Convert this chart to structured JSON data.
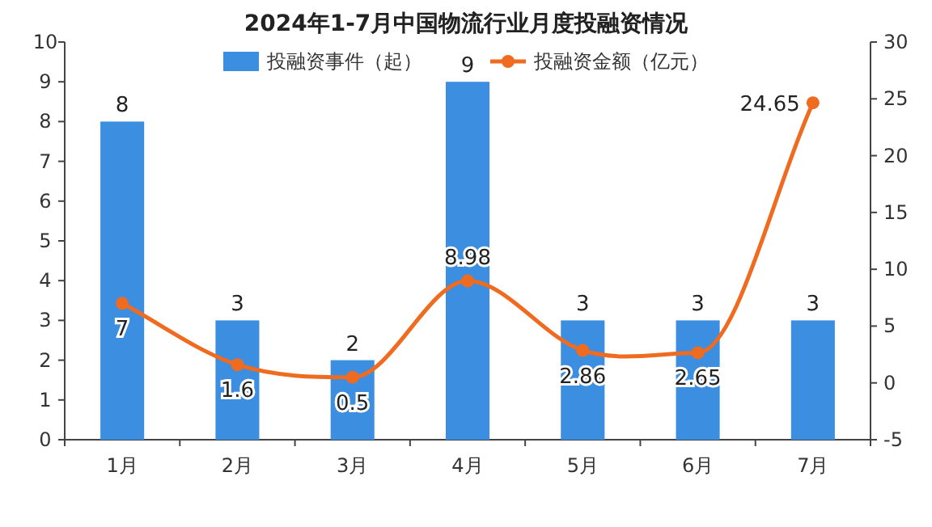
{
  "chart_data": {
    "type": "bar",
    "title": "2024年1-7月中国物流行业月度投融资情况",
    "categories": [
      "1月",
      "2月",
      "3月",
      "4月",
      "5月",
      "6月",
      "7月"
    ],
    "series": [
      {
        "name": "投融资事件（起）",
        "color": "#3c8ee0",
        "values": [
          8,
          3,
          2,
          9,
          3,
          3,
          3
        ]
      },
      {
        "name": "投融资金额（亿元）",
        "type": "line",
        "axis": "y2",
        "color": "#ef6b1f",
        "values": [
          7,
          1.6,
          0.5,
          8.98,
          2.86,
          2.65,
          24.65
        ]
      }
    ],
    "ylim": [
      0,
      10
    ],
    "yticks": [
      0,
      1,
      2,
      3,
      4,
      5,
      6,
      7,
      8,
      9,
      10
    ],
    "y2lim": [
      -5,
      30
    ],
    "y2ticks": [
      -5,
      0,
      5,
      10,
      15,
      20,
      25,
      30
    ],
    "data_labels": true,
    "legend": "top",
    "marker": "circle",
    "line_style": "solid"
  }
}
